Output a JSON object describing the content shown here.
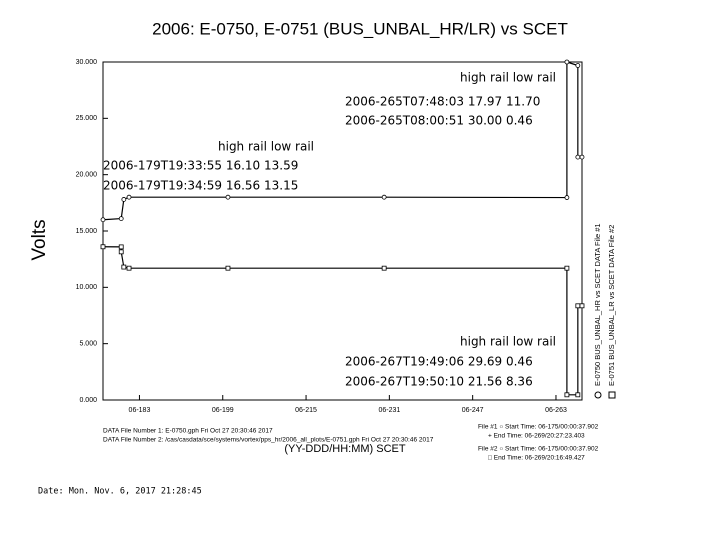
{
  "chart_data": {
    "type": "line",
    "title": "2006: E-0750, E-0751 (BUS_UNBAL_HR/LR) vs SCET",
    "y_label": "Volts",
    "x_label": "(YY-DDD/HH:MM) SCET",
    "xlim": [
      176,
      268
    ],
    "xticks": [
      {
        "value": 183,
        "label": "06-183"
      },
      {
        "value": 199,
        "label": "06-199"
      },
      {
        "value": 215,
        "label": "06-215"
      },
      {
        "value": 231,
        "label": "06-231"
      },
      {
        "value": 247,
        "label": "06-247"
      },
      {
        "value": 263,
        "label": "06-263"
      }
    ],
    "ylim": [
      0,
      30
    ],
    "yticks": [
      {
        "value": 0,
        "label": "0.000"
      },
      {
        "value": 5,
        "label": "5.000"
      },
      {
        "value": 10,
        "label": "10.000"
      },
      {
        "value": 15,
        "label": "15.000"
      },
      {
        "value": 20,
        "label": "20.000"
      },
      {
        "value": 25,
        "label": "25.000"
      },
      {
        "value": 30,
        "label": "30.000"
      }
    ],
    "grid": false,
    "series": [
      {
        "name": "E-0750 BUS_UNBAL_HR vs SCET DATA File #1",
        "color": "#000000",
        "marker": "circle",
        "x": [
          176,
          179.5,
          180,
          181,
          200,
          230,
          265.1,
          265.1,
          267.2,
          267.2,
          268
        ],
        "values": [
          16.0,
          16.1,
          17.8,
          18.0,
          18.0,
          18.0,
          17.97,
          30.0,
          29.69,
          21.56,
          21.56
        ]
      },
      {
        "name": "E-0751 BUS_UNBAL_LR vs SCET DATA File #2",
        "color": "#000000",
        "marker": "square",
        "x": [
          176,
          179.5,
          179.5,
          180,
          181,
          200,
          230,
          265.1,
          265.1,
          267.2,
          267.2,
          268
        ],
        "values": [
          13.6,
          13.59,
          13.15,
          11.8,
          11.7,
          11.7,
          11.7,
          11.7,
          0.46,
          0.46,
          8.36,
          8.36
        ]
      }
    ],
    "annotations": [
      [
        "high rail low rail",
        "2006-265T07:48:03 17.97 11.70",
        "2006-265T08:00:51 30.00 0.46"
      ],
      [
        "high rail low rail",
        "2006-179T19:33:55 16.10 13.59",
        "2006-179T19:34:59 16.56 13.15"
      ],
      [
        "high rail low rail",
        "2006-267T19:49:06 29.69 0.46",
        "2006-267T19:50:10 21.56 8.36"
      ]
    ],
    "footer": {
      "files": [
        "DATA File Number 1: E-0750.gph   Fri Oct 27 20:30:46 2017",
        "DATA File Number 2: /cas/casdata/sce/systems/vortex/pps_hr/2006_all_plots/E-0751.gph   Fri Oct 27 20:30:46 2017"
      ],
      "times": [
        "File #1  ○ Start Time: 06-175/00:00:37.902",
        "+ End Time: 06-269/20:27:23.403",
        "File #2  ○ Start Time: 06-175/00:00:37.902",
        "□ End Time: 06-269/20:16:49.427"
      ],
      "date": "Date: Mon. Nov. 6, 2017    21:28:45"
    }
  }
}
